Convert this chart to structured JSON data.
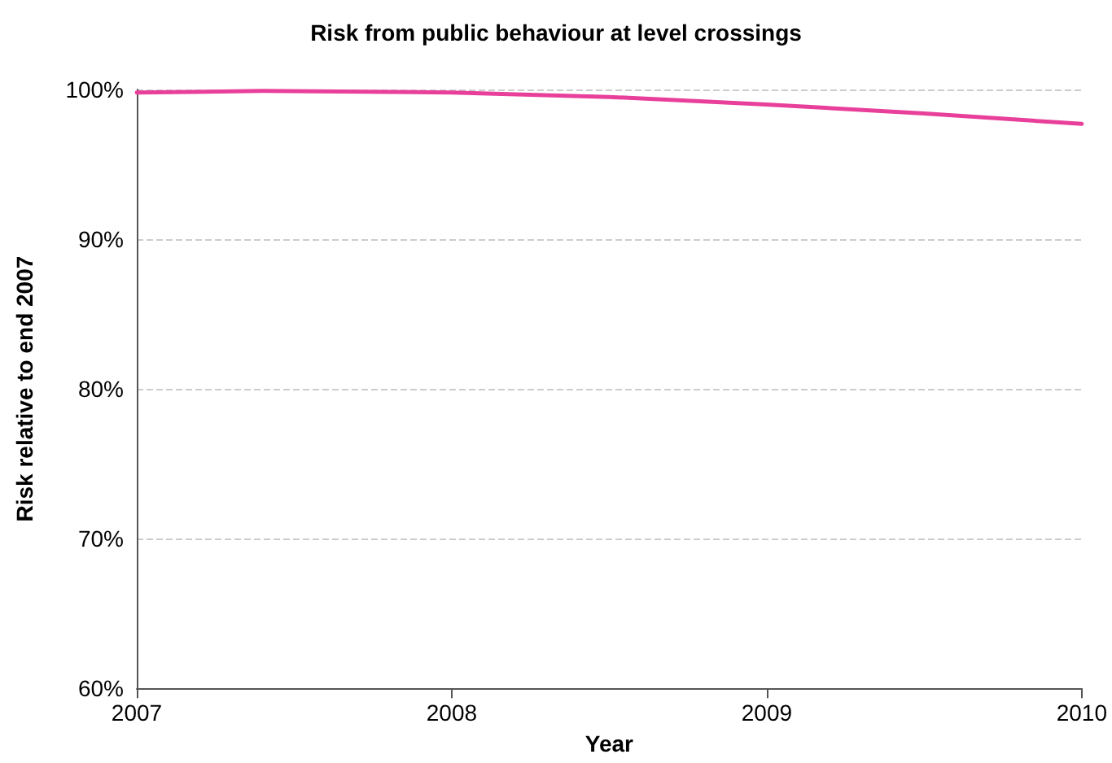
{
  "chart_data": {
    "type": "line",
    "title": "Risk from public behaviour at level crossings",
    "xlabel": "Year",
    "ylabel": "Risk relative to end 2007",
    "x": [
      2007,
      2007.4,
      2008,
      2008.5,
      2009,
      2009.5,
      2010
    ],
    "series": [
      {
        "color": "#e8409a",
        "values": [
          99.8,
          99.9,
          99.8,
          99.5,
          99.0,
          98.4,
          97.7
        ]
      }
    ],
    "xlim": [
      2007,
      2010
    ],
    "xticks": [
      2007,
      2008,
      2009,
      2010
    ],
    "ylim": [
      60,
      100
    ],
    "yticks": [
      {
        "value": 60,
        "label": "60%"
      },
      {
        "value": 70,
        "label": "70%"
      },
      {
        "value": 80,
        "label": "80%"
      },
      {
        "value": 90,
        "label": "90%"
      },
      {
        "value": 100,
        "label": "100%"
      }
    ],
    "grid": "y",
    "marker": "none",
    "line_style": "solid"
  }
}
